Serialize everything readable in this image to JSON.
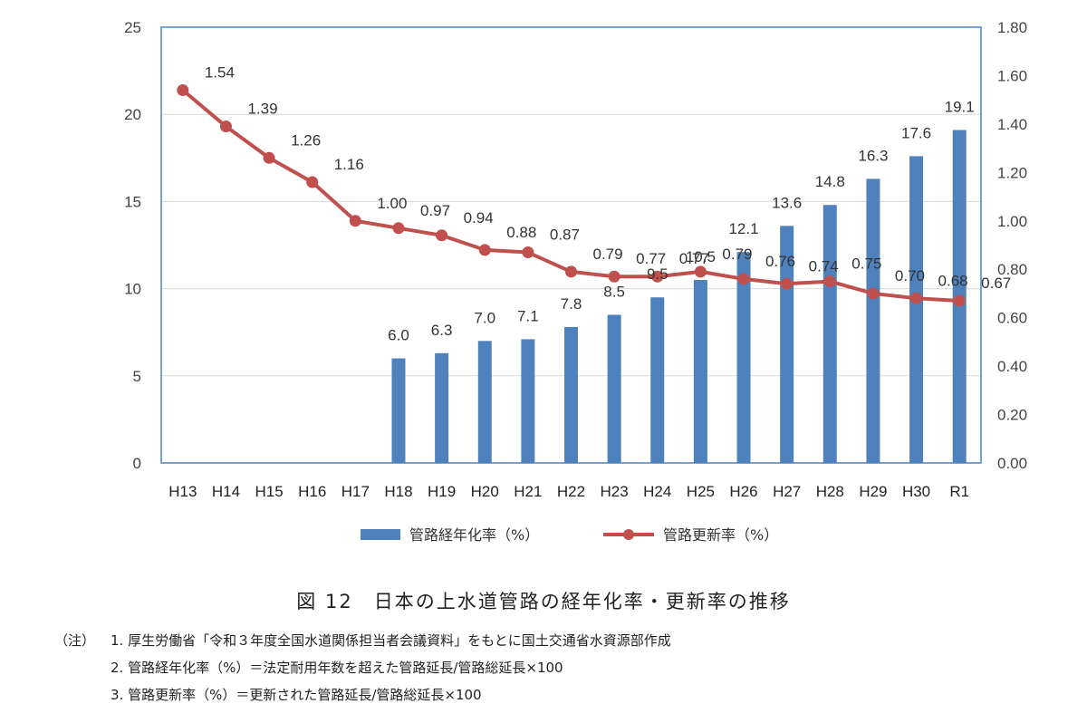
{
  "chart_data": {
    "type": "bar+line",
    "title": "",
    "categories": [
      "H13",
      "H14",
      "H15",
      "H16",
      "H17",
      "H18",
      "H19",
      "H20",
      "H21",
      "H22",
      "H23",
      "H24",
      "H25",
      "H26",
      "H27",
      "H28",
      "H29",
      "H30",
      "R1"
    ],
    "series": [
      {
        "name": "管路経年化率（%）",
        "type": "bar",
        "axis": "left",
        "color": "#4f81bd",
        "values": [
          null,
          null,
          null,
          null,
          null,
          6.0,
          6.3,
          7.0,
          7.1,
          7.8,
          8.5,
          9.5,
          10.5,
          12.1,
          13.6,
          14.8,
          16.3,
          17.6,
          19.1
        ],
        "labels": [
          "",
          "",
          "",
          "",
          "",
          "6.0",
          "6.3",
          "7.0",
          "7.1",
          "7.8",
          "8.5",
          "9.5",
          "10.5",
          "12.1",
          "13.6",
          "14.8",
          "16.3",
          "17.6",
          "19.1"
        ]
      },
      {
        "name": "管路更新率（%）",
        "type": "line",
        "axis": "right",
        "color": "#c0504d",
        "values": [
          1.54,
          1.39,
          1.26,
          1.16,
          1.0,
          0.97,
          0.94,
          0.88,
          0.87,
          0.79,
          0.77,
          0.77,
          0.79,
          0.76,
          0.74,
          0.75,
          0.7,
          0.68,
          0.67
        ],
        "labels": [
          "1.54",
          "1.39",
          "1.26",
          "1.16",
          "1.00",
          "0.97",
          "0.94",
          "0.88",
          "0.87",
          "0.79",
          "0.77",
          "0.77",
          "0.79",
          "0.76",
          "0.74",
          "0.75",
          "0.70",
          "0.68",
          "0.67"
        ]
      }
    ],
    "y_left": {
      "range": [
        0,
        25
      ],
      "ticks": [
        "0",
        "5",
        "10",
        "15",
        "20",
        "25"
      ]
    },
    "y_right": {
      "range": [
        0,
        1.8
      ],
      "ticks": [
        "0.00",
        "0.20",
        "0.40",
        "0.60",
        "0.80",
        "1.00",
        "1.20",
        "1.40",
        "1.60",
        "1.80"
      ]
    },
    "grid": true,
    "legend_position": "bottom",
    "frame_color": "#4f81bd",
    "grid_color": "#d9d9d9"
  },
  "caption": "図 12　日本の上水道管路の経年化率・更新率の推移",
  "notes": [
    {
      "prefix": "（注）",
      "text": "1. 厚生労働省「令和３年度全国水道関係担当者会議資料」をもとに国土交通省水資源部作成"
    },
    {
      "prefix": "",
      "text": "2. 管路経年化率（%）＝法定耐用年数を超えた管路延長/管路総延長×100"
    },
    {
      "prefix": "",
      "text": "3. 管路更新率（%）＝更新された管路延長/管路総延長×100"
    }
  ]
}
